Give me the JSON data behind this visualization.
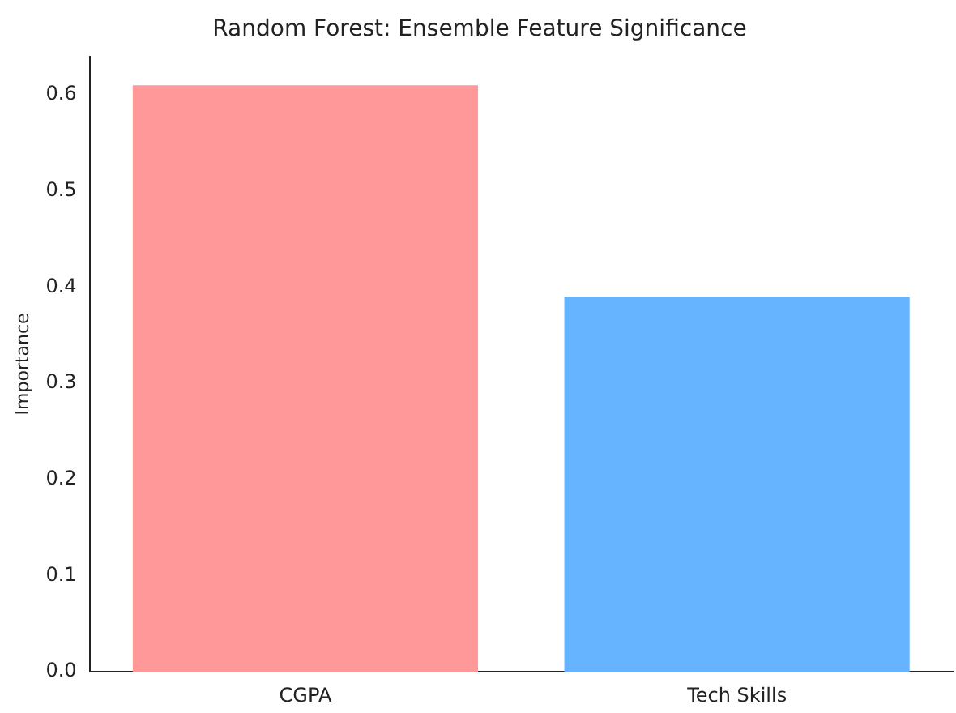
{
  "chart_data": {
    "type": "bar",
    "title": "Random Forest: Ensemble Feature Significance",
    "ylabel": "Importance",
    "categories": [
      "CGPA",
      "Tech Skills"
    ],
    "values": [
      0.61,
      0.39
    ],
    "colors": [
      "#ff9999",
      "#66b3ff"
    ],
    "ylim": [
      0,
      0.64
    ],
    "yticks": [
      {
        "value": 0,
        "label": "0.0"
      },
      0.1,
      0.2,
      0.3,
      0.4,
      0.5,
      0.6
    ],
    "grid": false,
    "legend": false
  }
}
